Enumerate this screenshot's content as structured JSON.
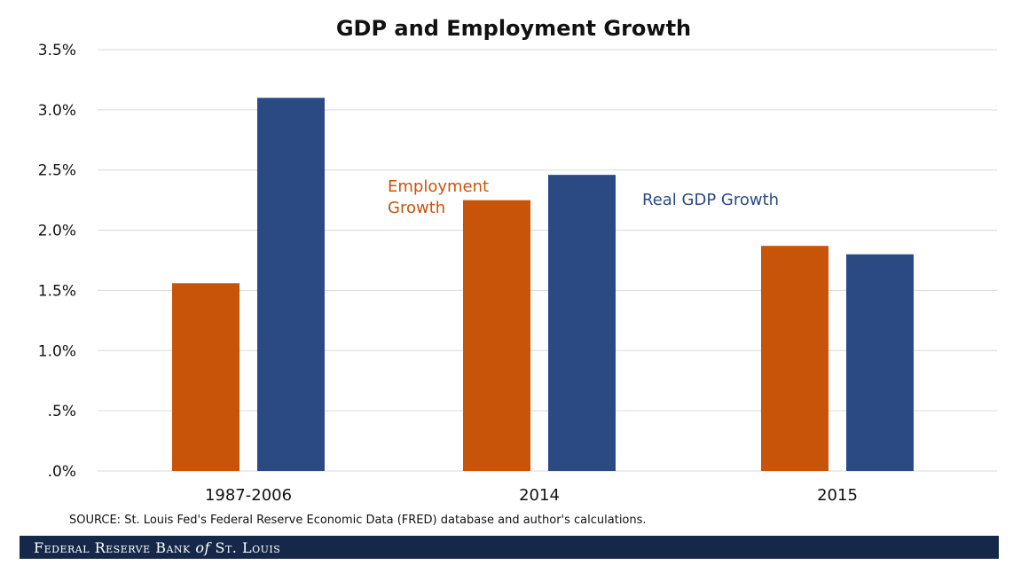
{
  "chart_data": {
    "type": "bar",
    "title": "GDP and Employment Growth",
    "xlabel": "",
    "ylabel": "",
    "categories": [
      "1987-2006",
      "2014",
      "2015"
    ],
    "series": [
      {
        "name": "Employment Growth",
        "color": "#c8540a",
        "values": [
          1.56,
          2.25,
          1.87
        ]
      },
      {
        "name": "Real GDP Growth",
        "color": "#2b4a84",
        "values": [
          3.1,
          2.46,
          1.8
        ]
      }
    ],
    "series_label_lines": [
      [
        "Employment",
        "Growth"
      ],
      [
        "Real GDP Growth"
      ]
    ],
    "ylim": [
      0,
      3.5
    ],
    "yticks": [
      {
        "value": 0,
        "label": ".0%"
      },
      {
        "value": 0.5,
        "label": ".5%"
      },
      {
        "value": 1.0,
        "label": "1.0%"
      },
      {
        "value": 1.5,
        "label": "1.5%"
      },
      {
        "value": 2.0,
        "label": "2.0%"
      },
      {
        "value": 2.5,
        "label": "2.5%"
      },
      {
        "value": 3.0,
        "label": "3.0%"
      },
      {
        "value": 3.5,
        "label": "3.5%"
      }
    ],
    "grid": true,
    "legend": "inline labels near the 2014 bars",
    "source": "SOURCE: St. Louis Fed's Federal Reserve Economic Data (FRED) database and author's calculations."
  },
  "footer": {
    "brand": "Federal Reserve Bank of St. Louis",
    "brand_parts": {
      "part1": "Federal Reserve Bank ",
      "part2": "of",
      "part3": " St. Louis"
    },
    "background": "#15284a"
  }
}
